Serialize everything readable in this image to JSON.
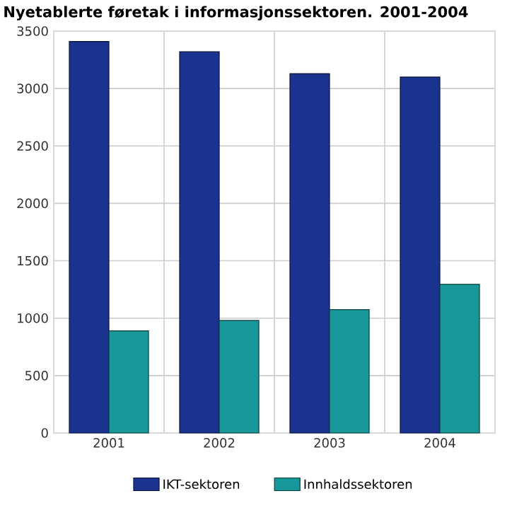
{
  "chart_data": {
    "type": "bar",
    "title": "Nyetablerte føretak i informasjonssektoren. 2001-2004",
    "categories": [
      "2001",
      "2002",
      "2003",
      "2004"
    ],
    "series": [
      {
        "name": "IKT-sektoren",
        "color": "#1a338f",
        "values": [
          3410,
          3320,
          3130,
          3100
        ]
      },
      {
        "name": "Innhaldssektoren",
        "color": "#18989a",
        "values": [
          890,
          980,
          1075,
          1295
        ]
      }
    ],
    "ylim": [
      0,
      3500
    ],
    "yticks": [
      0,
      500,
      1000,
      1500,
      2000,
      2500,
      3000,
      3500
    ],
    "grid": true,
    "legend": "bottom"
  }
}
